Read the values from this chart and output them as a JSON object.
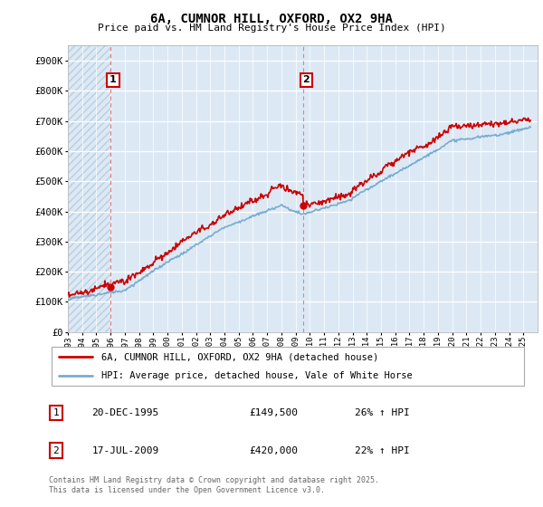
{
  "title_line1": "6A, CUMNOR HILL, OXFORD, OX2 9HA",
  "title_line2": "Price paid vs. HM Land Registry's House Price Index (HPI)",
  "ylim": [
    0,
    950000
  ],
  "ytick_values": [
    0,
    100000,
    200000,
    300000,
    400000,
    500000,
    600000,
    700000,
    800000,
    900000
  ],
  "ytick_labels": [
    "£0",
    "£100K",
    "£200K",
    "£300K",
    "£400K",
    "£500K",
    "£600K",
    "£700K",
    "£800K",
    "£900K"
  ],
  "background_color": "#dce9f5",
  "hatch_color": "#b8cfe0",
  "grid_color": "#ffffff",
  "line1_color": "#cc0000",
  "line2_color": "#7aadcf",
  "vline_color": "#e08080",
  "sale1_x": 1995.97,
  "sale1_y": 149500,
  "sale2_x": 2009.54,
  "sale2_y": 420000,
  "legend_line1": "6A, CUMNOR HILL, OXFORD, OX2 9HA (detached house)",
  "legend_line2": "HPI: Average price, detached house, Vale of White Horse",
  "table_entries": [
    {
      "num": 1,
      "date": "20-DEC-1995",
      "price": "£149,500",
      "hpi": "26% ↑ HPI"
    },
    {
      "num": 2,
      "date": "17-JUL-2009",
      "price": "£420,000",
      "hpi": "22% ↑ HPI"
    }
  ],
  "footnote": "Contains HM Land Registry data © Crown copyright and database right 2025.\nThis data is licensed under the Open Government Licence v3.0.",
  "xmin": 1993,
  "xmax": 2026
}
